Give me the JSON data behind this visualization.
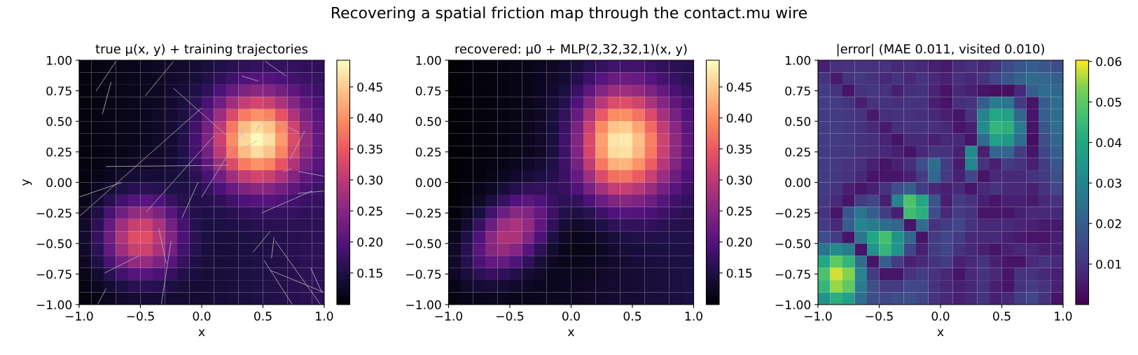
{
  "chart_data": [
    {
      "type": "other",
      "title": "Recovering a spatial friction map through the contact.mu wire"
    },
    {
      "type": "heatmap",
      "title": "true μ(x, y) + training trajectories",
      "xlabel": "x",
      "ylabel": "y",
      "xlim": [
        -1,
        1
      ],
      "ylim": [
        -1,
        1
      ],
      "xticks": [
        {
          "value": -1,
          "label": "−1.0"
        },
        {
          "value": -0.5,
          "label": "−0.5"
        },
        {
          "value": 0,
          "label": "0.0"
        },
        {
          "value": 0.5,
          "label": "0.5"
        },
        {
          "value": 1,
          "label": "1.0"
        }
      ],
      "yticks": [
        {
          "value": -1,
          "label": "−1.00"
        },
        {
          "value": -0.75,
          "label": "−0.75"
        },
        {
          "value": -0.5,
          "label": "−0.50"
        },
        {
          "value": -0.25,
          "label": "−0.25"
        },
        {
          "value": 0,
          "label": "0.00"
        },
        {
          "value": 0.25,
          "label": "0.25"
        },
        {
          "value": 0.5,
          "label": "0.50"
        },
        {
          "value": 0.75,
          "label": "0.75"
        },
        {
          "value": 1,
          "label": "1.00"
        }
      ],
      "clim": [
        0.099,
        0.493
      ],
      "cticks": [
        {
          "value": 0.15,
          "label": "0.15"
        },
        {
          "value": 0.2,
          "label": "0.20"
        },
        {
          "value": 0.25,
          "label": "0.25"
        },
        {
          "value": 0.3,
          "label": "0.30"
        },
        {
          "value": 0.35,
          "label": "0.35"
        },
        {
          "value": 0.4,
          "label": "0.40"
        },
        {
          "value": 0.45,
          "label": "0.45"
        }
      ],
      "colors": [
        "#000004",
        "#1c1044",
        "#51127c",
        "#832681",
        "#b73779",
        "#e85362",
        "#fc8961",
        "#fec287",
        "#fcfdbf"
      ],
      "cells": [
        [
          0.107,
          0.11,
          0.113,
          0.116,
          0.119,
          0.122,
          0.125,
          0.128,
          0.132,
          0.137,
          0.144,
          0.152,
          0.16,
          0.168,
          0.172,
          0.174,
          0.172,
          0.17,
          0.168,
          0.167
        ],
        [
          0.107,
          0.11,
          0.113,
          0.116,
          0.119,
          0.122,
          0.125,
          0.129,
          0.134,
          0.142,
          0.153,
          0.167,
          0.182,
          0.195,
          0.202,
          0.201,
          0.194,
          0.185,
          0.177,
          0.172
        ],
        [
          0.107,
          0.11,
          0.113,
          0.116,
          0.119,
          0.122,
          0.125,
          0.13,
          0.138,
          0.15,
          0.168,
          0.193,
          0.22,
          0.242,
          0.253,
          0.248,
          0.232,
          0.211,
          0.192,
          0.18
        ],
        [
          0.107,
          0.11,
          0.113,
          0.116,
          0.119,
          0.122,
          0.126,
          0.132,
          0.143,
          0.161,
          0.19,
          0.229,
          0.273,
          0.308,
          0.323,
          0.314,
          0.285,
          0.247,
          0.214,
          0.191
        ],
        [
          0.107,
          0.11,
          0.113,
          0.116,
          0.119,
          0.122,
          0.127,
          0.134,
          0.148,
          0.173,
          0.214,
          0.27,
          0.331,
          0.381,
          0.402,
          0.387,
          0.343,
          0.288,
          0.238,
          0.203
        ],
        [
          0.107,
          0.11,
          0.113,
          0.116,
          0.119,
          0.122,
          0.127,
          0.136,
          0.153,
          0.183,
          0.233,
          0.302,
          0.378,
          0.439,
          0.464,
          0.445,
          0.39,
          0.32,
          0.257,
          0.213
        ],
        [
          0.107,
          0.11,
          0.113,
          0.116,
          0.119,
          0.122,
          0.128,
          0.137,
          0.154,
          0.187,
          0.241,
          0.314,
          0.396,
          0.461,
          0.489,
          0.467,
          0.408,
          0.332,
          0.265,
          0.217
        ],
        [
          0.107,
          0.11,
          0.113,
          0.117,
          0.12,
          0.124,
          0.128,
          0.137,
          0.153,
          0.183,
          0.233,
          0.302,
          0.378,
          0.439,
          0.464,
          0.445,
          0.39,
          0.32,
          0.257,
          0.213
        ],
        [
          0.107,
          0.111,
          0.115,
          0.12,
          0.124,
          0.127,
          0.131,
          0.137,
          0.15,
          0.174,
          0.214,
          0.27,
          0.331,
          0.381,
          0.402,
          0.387,
          0.343,
          0.288,
          0.238,
          0.203
        ],
        [
          0.109,
          0.114,
          0.121,
          0.129,
          0.135,
          0.138,
          0.139,
          0.141,
          0.147,
          0.163,
          0.191,
          0.229,
          0.273,
          0.308,
          0.323,
          0.314,
          0.285,
          0.247,
          0.214,
          0.191
        ],
        [
          0.112,
          0.121,
          0.135,
          0.149,
          0.16,
          0.163,
          0.159,
          0.152,
          0.15,
          0.155,
          0.17,
          0.194,
          0.22,
          0.242,
          0.253,
          0.248,
          0.232,
          0.211,
          0.192,
          0.18
        ],
        [
          0.117,
          0.134,
          0.158,
          0.184,
          0.203,
          0.206,
          0.194,
          0.175,
          0.159,
          0.153,
          0.157,
          0.168,
          0.183,
          0.195,
          0.202,
          0.201,
          0.194,
          0.185,
          0.177,
          0.172
        ],
        [
          0.124,
          0.151,
          0.189,
          0.231,
          0.261,
          0.264,
          0.24,
          0.204,
          0.173,
          0.155,
          0.15,
          0.154,
          0.161,
          0.168,
          0.172,
          0.174,
          0.172,
          0.17,
          0.168,
          0.167
        ],
        [
          0.131,
          0.165,
          0.217,
          0.273,
          0.312,
          0.315,
          0.282,
          0.232,
          0.187,
          0.159,
          0.148,
          0.147,
          0.15,
          0.154,
          0.158,
          0.16,
          0.161,
          0.162,
          0.163,
          0.165
        ],
        [
          0.134,
          0.172,
          0.228,
          0.29,
          0.333,
          0.336,
          0.299,
          0.243,
          0.193,
          0.161,
          0.147,
          0.144,
          0.145,
          0.148,
          0.152,
          0.154,
          0.157,
          0.159,
          0.161,
          0.164
        ],
        [
          0.131,
          0.165,
          0.217,
          0.273,
          0.312,
          0.315,
          0.282,
          0.232,
          0.186,
          0.158,
          0.145,
          0.142,
          0.144,
          0.146,
          0.149,
          0.152,
          0.155,
          0.158,
          0.161,
          0.164
        ],
        [
          0.124,
          0.151,
          0.189,
          0.231,
          0.261,
          0.264,
          0.24,
          0.204,
          0.172,
          0.151,
          0.143,
          0.141,
          0.143,
          0.146,
          0.149,
          0.152,
          0.155,
          0.158,
          0.161,
          0.164
        ],
        [
          0.117,
          0.134,
          0.158,
          0.184,
          0.203,
          0.206,
          0.193,
          0.173,
          0.155,
          0.144,
          0.14,
          0.141,
          0.143,
          0.146,
          0.149,
          0.152,
          0.155,
          0.158,
          0.161,
          0.164
        ],
        [
          0.112,
          0.121,
          0.135,
          0.149,
          0.16,
          0.163,
          0.158,
          0.15,
          0.142,
          0.139,
          0.138,
          0.14,
          0.143,
          0.146,
          0.149,
          0.152,
          0.155,
          0.158,
          0.161,
          0.164
        ],
        [
          0.109,
          0.114,
          0.121,
          0.129,
          0.135,
          0.138,
          0.138,
          0.136,
          0.135,
          0.136,
          0.137,
          0.14,
          0.143,
          0.146,
          0.149,
          0.152,
          0.155,
          0.158,
          0.161,
          0.164
        ]
      ],
      "series": [
        {
          "type": "line",
          "color": "#b4b4b4",
          "x": [
            -0.86,
            -0.7
          ],
          "values": [
            0.75,
            0.99
          ]
        },
        {
          "type": "line",
          "color": "#b4b4b4",
          "x": [
            -0.81,
            -0.74
          ],
          "values": [
            0.56,
            0.82
          ]
        },
        {
          "type": "line",
          "color": "#b4b4b4",
          "x": [
            -0.46,
            -0.23
          ],
          "values": [
            0.71,
            0.99
          ]
        },
        {
          "type": "line",
          "color": "#b4b4b4",
          "x": [
            -0.23,
            0.22
          ],
          "values": [
            0.77,
            0.37
          ]
        },
        {
          "type": "line",
          "color": "#b4b4b4",
          "x": [
            -1.0,
            0.0
          ],
          "values": [
            -0.28,
            0.61
          ]
        },
        {
          "type": "line",
          "color": "#b4b4b4",
          "x": [
            -1.0,
            -0.65
          ],
          "values": [
            -0.12,
            0.0
          ]
        },
        {
          "type": "line",
          "color": "#b4b4b4",
          "x": [
            -0.78,
            0.22
          ],
          "values": [
            0.13,
            0.14
          ]
        },
        {
          "type": "line",
          "color": "#b4b4b4",
          "x": [
            -0.45,
            0.1
          ],
          "values": [
            -0.24,
            0.38
          ]
        },
        {
          "type": "line",
          "color": "#b4b4b4",
          "x": [
            -0.16,
            -0.03
          ],
          "values": [
            -0.29,
            0.0
          ]
        },
        {
          "type": "line",
          "color": "#b4b4b4",
          "x": [
            0.0,
            0.35
          ],
          "values": [
            -0.12,
            0.45
          ]
        },
        {
          "type": "line",
          "color": "#b4b4b4",
          "x": [
            0.33,
            0.45
          ],
          "values": [
            0.27,
            0.34
          ]
        },
        {
          "type": "line",
          "color": "#b4b4b4",
          "x": [
            0.44,
            0.52
          ],
          "values": [
            0.42,
            0.52
          ]
        },
        {
          "type": "line",
          "color": "#b4b4b4",
          "x": [
            0.32,
            0.34
          ],
          "values": [
            0.45,
            0.37
          ]
        },
        {
          "type": "line",
          "color": "#b4b4b4",
          "x": [
            0.54,
            0.79
          ],
          "values": [
            0.53,
            0.41
          ]
        },
        {
          "type": "line",
          "color": "#b4b4b4",
          "x": [
            0.67,
            0.68
          ],
          "values": [
            0.44,
            0.37
          ]
        },
        {
          "type": "line",
          "color": "#b4b4b4",
          "x": [
            0.72,
            0.84
          ],
          "values": [
            0.19,
            0.42
          ]
        },
        {
          "type": "line",
          "color": "#b4b4b4",
          "x": [
            0.67,
            0.73
          ],
          "values": [
            0.09,
            0.11
          ]
        },
        {
          "type": "line",
          "color": "#b4b4b4",
          "x": [
            0.79,
            1.0
          ],
          "values": [
            0.09,
            0.05
          ]
        },
        {
          "type": "line",
          "color": "#b4b4b4",
          "x": [
            0.79,
            1.0
          ],
          "values": [
            -0.09,
            -0.07
          ]
        },
        {
          "type": "line",
          "color": "#b4b4b4",
          "x": [
            0.49,
            0.9
          ],
          "values": [
            -0.25,
            -0.07
          ]
        },
        {
          "type": "line",
          "color": "#b4b4b4",
          "x": [
            0.33,
            0.46
          ],
          "values": [
            0.87,
            0.83
          ]
        },
        {
          "type": "line",
          "color": "#b4b4b4",
          "x": [
            0.52,
            0.69
          ],
          "values": [
            0.99,
            0.87
          ]
        },
        {
          "type": "line",
          "color": "#b4b4b4",
          "x": [
            -0.79,
            -0.51
          ],
          "values": [
            -0.74,
            -0.6
          ]
        },
        {
          "type": "line",
          "color": "#b4b4b4",
          "x": [
            -0.85,
            -0.78
          ],
          "values": [
            -1.0,
            -0.87
          ]
        },
        {
          "type": "line",
          "color": "#b4b4b4",
          "x": [
            -0.35,
            -0.29
          ],
          "values": [
            -0.38,
            -0.66
          ]
        },
        {
          "type": "line",
          "color": "#b4b4b4",
          "x": [
            -0.33,
            -0.25
          ],
          "values": [
            -1.0,
            -0.48
          ]
        },
        {
          "type": "line",
          "color": "#b4b4b4",
          "x": [
            0.42,
            0.56
          ],
          "values": [
            -0.57,
            -0.4
          ]
        },
        {
          "type": "line",
          "color": "#b4b4b4",
          "x": [
            0.57,
            0.59
          ],
          "values": [
            -0.62,
            -0.45
          ]
        },
        {
          "type": "line",
          "color": "#b4b4b4",
          "x": [
            0.51,
            0.74
          ],
          "values": [
            -0.64,
            -1.0
          ]
        },
        {
          "type": "line",
          "color": "#b4b4b4",
          "x": [
            0.6,
            0.97
          ],
          "values": [
            -0.48,
            -1.0
          ]
        },
        {
          "type": "line",
          "color": "#b4b4b4",
          "x": [
            0.56,
            1.0
          ],
          "values": [
            -0.72,
            -0.9
          ]
        },
        {
          "type": "line",
          "color": "#b4b4b4",
          "x": [
            0.89,
            0.98
          ],
          "values": [
            -0.7,
            -0.9
          ]
        }
      ]
    },
    {
      "type": "heatmap",
      "title": "recovered: μ0 + MLP(2,32,32,1)(x, y)",
      "xlabel": "x",
      "xlim": [
        -1,
        1
      ],
      "ylim": [
        -1,
        1
      ],
      "xticks": [
        {
          "value": -1,
          "label": "−1.0"
        },
        {
          "value": -0.5,
          "label": "−0.5"
        },
        {
          "value": 0,
          "label": "0.0"
        },
        {
          "value": 0.5,
          "label": "0.5"
        },
        {
          "value": 1,
          "label": "1.0"
        }
      ],
      "yticks": [
        {
          "value": -1,
          "label": "−1.00"
        },
        {
          "value": -0.75,
          "label": "−0.75"
        },
        {
          "value": -0.5,
          "label": "−0.50"
        },
        {
          "value": -0.25,
          "label": "−0.25"
        },
        {
          "value": 0,
          "label": "0.00"
        },
        {
          "value": 0.25,
          "label": "0.25"
        },
        {
          "value": 0.5,
          "label": "0.50"
        },
        {
          "value": 0.75,
          "label": "0.75"
        },
        {
          "value": 1,
          "label": "1.00"
        }
      ],
      "clim": [
        0.099,
        0.493
      ],
      "cticks": [
        {
          "value": 0.15,
          "label": "0.15"
        },
        {
          "value": 0.2,
          "label": "0.20"
        },
        {
          "value": 0.25,
          "label": "0.25"
        },
        {
          "value": 0.3,
          "label": "0.30"
        },
        {
          "value": 0.35,
          "label": "0.35"
        },
        {
          "value": 0.4,
          "label": "0.40"
        },
        {
          "value": 0.45,
          "label": "0.45"
        }
      ],
      "colors": [
        "#000004",
        "#1c1044",
        "#51127c",
        "#832681",
        "#b73779",
        "#e85362",
        "#fc8961",
        "#fec287",
        "#fcfdbf"
      ],
      "cells": [
        [
          0.101,
          0.104,
          0.106,
          0.109,
          0.111,
          0.114,
          0.117,
          0.12,
          0.125,
          0.132,
          0.143,
          0.158,
          0.172,
          0.183,
          0.185,
          0.183,
          0.176,
          0.169,
          0.163,
          0.158
        ],
        [
          0.101,
          0.104,
          0.106,
          0.109,
          0.111,
          0.114,
          0.117,
          0.121,
          0.128,
          0.139,
          0.157,
          0.18,
          0.203,
          0.22,
          0.223,
          0.216,
          0.203,
          0.188,
          0.175,
          0.165
        ],
        [
          0.101,
          0.104,
          0.106,
          0.109,
          0.111,
          0.114,
          0.117,
          0.122,
          0.131,
          0.148,
          0.175,
          0.21,
          0.246,
          0.271,
          0.274,
          0.262,
          0.24,
          0.215,
          0.192,
          0.175
        ],
        [
          0.101,
          0.104,
          0.106,
          0.109,
          0.111,
          0.114,
          0.118,
          0.124,
          0.136,
          0.159,
          0.196,
          0.247,
          0.298,
          0.332,
          0.336,
          0.318,
          0.285,
          0.247,
          0.212,
          0.187
        ],
        [
          0.101,
          0.104,
          0.106,
          0.109,
          0.111,
          0.114,
          0.118,
          0.126,
          0.141,
          0.17,
          0.218,
          0.284,
          0.35,
          0.395,
          0.399,
          0.374,
          0.33,
          0.279,
          0.233,
          0.198
        ],
        [
          0.101,
          0.104,
          0.106,
          0.109,
          0.111,
          0.114,
          0.119,
          0.127,
          0.144,
          0.178,
          0.236,
          0.313,
          0.393,
          0.445,
          0.45,
          0.419,
          0.366,
          0.305,
          0.25,
          0.208
        ],
        [
          0.101,
          0.104,
          0.106,
          0.109,
          0.111,
          0.115,
          0.119,
          0.128,
          0.146,
          0.183,
          0.245,
          0.328,
          0.414,
          0.47,
          0.475,
          0.442,
          0.384,
          0.318,
          0.258,
          0.213
        ],
        [
          0.101,
          0.104,
          0.106,
          0.109,
          0.111,
          0.114,
          0.119,
          0.127,
          0.146,
          0.182,
          0.243,
          0.324,
          0.408,
          0.463,
          0.468,
          0.436,
          0.379,
          0.314,
          0.256,
          0.211
        ],
        [
          0.101,
          0.104,
          0.107,
          0.11,
          0.114,
          0.12,
          0.126,
          0.135,
          0.151,
          0.181,
          0.233,
          0.305,
          0.378,
          0.427,
          0.432,
          0.403,
          0.353,
          0.295,
          0.244,
          0.205
        ],
        [
          0.101,
          0.104,
          0.108,
          0.114,
          0.121,
          0.131,
          0.14,
          0.148,
          0.157,
          0.177,
          0.216,
          0.272,
          0.33,
          0.37,
          0.374,
          0.352,
          0.312,
          0.266,
          0.225,
          0.194
        ],
        [
          0.102,
          0.106,
          0.113,
          0.124,
          0.14,
          0.156,
          0.168,
          0.17,
          0.168,
          0.174,
          0.197,
          0.235,
          0.277,
          0.307,
          0.311,
          0.295,
          0.266,
          0.233,
          0.204,
          0.182
        ],
        [
          0.103,
          0.11,
          0.124,
          0.146,
          0.175,
          0.199,
          0.207,
          0.196,
          0.177,
          0.165,
          0.171,
          0.194,
          0.223,
          0.245,
          0.25,
          0.242,
          0.224,
          0.203,
          0.185,
          0.171
        ],
        [
          0.106,
          0.12,
          0.145,
          0.183,
          0.224,
          0.25,
          0.245,
          0.215,
          0.178,
          0.154,
          0.149,
          0.161,
          0.18,
          0.198,
          0.203,
          0.2,
          0.191,
          0.18,
          0.169,
          0.162
        ],
        [
          0.112,
          0.134,
          0.173,
          0.225,
          0.27,
          0.285,
          0.261,
          0.214,
          0.168,
          0.139,
          0.129,
          0.135,
          0.15,
          0.164,
          0.17,
          0.171,
          0.169,
          0.163,
          0.159,
          0.156
        ],
        [
          0.12,
          0.151,
          0.199,
          0.252,
          0.287,
          0.284,
          0.244,
          0.193,
          0.151,
          0.126,
          0.118,
          0.122,
          0.132,
          0.143,
          0.15,
          0.154,
          0.155,
          0.154,
          0.153,
          0.152
        ],
        [
          0.127,
          0.161,
          0.207,
          0.249,
          0.265,
          0.247,
          0.206,
          0.164,
          0.134,
          0.119,
          0.114,
          0.117,
          0.125,
          0.134,
          0.141,
          0.145,
          0.148,
          0.148,
          0.149,
          0.15
        ],
        [
          0.129,
          0.158,
          0.192,
          0.216,
          0.217,
          0.196,
          0.166,
          0.141,
          0.125,
          0.117,
          0.116,
          0.12,
          0.125,
          0.132,
          0.137,
          0.141,
          0.144,
          0.146,
          0.147,
          0.149
        ],
        [
          0.124,
          0.145,
          0.165,
          0.174,
          0.169,
          0.154,
          0.138,
          0.127,
          0.122,
          0.12,
          0.12,
          0.123,
          0.127,
          0.132,
          0.136,
          0.139,
          0.142,
          0.144,
          0.146,
          0.149
        ],
        [
          0.116,
          0.128,
          0.137,
          0.14,
          0.136,
          0.129,
          0.124,
          0.122,
          0.121,
          0.122,
          0.124,
          0.126,
          0.129,
          0.133,
          0.136,
          0.139,
          0.141,
          0.144,
          0.146,
          0.149
        ],
        [
          0.109,
          0.115,
          0.119,
          0.121,
          0.12,
          0.118,
          0.118,
          0.12,
          0.121,
          0.123,
          0.125,
          0.128,
          0.131,
          0.133,
          0.136,
          0.139,
          0.141,
          0.144,
          0.146,
          0.149
        ]
      ]
    },
    {
      "type": "heatmap",
      "title": "|error| (MAE 0.011, visited 0.010)",
      "xlabel": "x",
      "xlim": [
        -1,
        1
      ],
      "ylim": [
        -1,
        1
      ],
      "xticks": [
        {
          "value": -1,
          "label": "−1.0"
        },
        {
          "value": -0.5,
          "label": "−0.5"
        },
        {
          "value": 0,
          "label": "0.0"
        },
        {
          "value": 0.5,
          "label": "0.5"
        },
        {
          "value": 1,
          "label": "1.0"
        }
      ],
      "yticks": [
        {
          "value": -1,
          "label": "−1.00"
        },
        {
          "value": -0.75,
          "label": "−0.75"
        },
        {
          "value": -0.5,
          "label": "−0.50"
        },
        {
          "value": -0.25,
          "label": "−0.25"
        },
        {
          "value": 0,
          "label": "0.00"
        },
        {
          "value": 0.25,
          "label": "0.25"
        },
        {
          "value": 0.5,
          "label": "0.50"
        },
        {
          "value": 0.75,
          "label": "0.75"
        },
        {
          "value": 1,
          "label": "1.00"
        }
      ],
      "clim": [
        0,
        0.0603
      ],
      "cticks": [
        {
          "value": 0.01,
          "label": "0.01"
        },
        {
          "value": 0.02,
          "label": "0.02"
        },
        {
          "value": 0.03,
          "label": "0.03"
        },
        {
          "value": 0.04,
          "label": "0.04"
        },
        {
          "value": 0.05,
          "label": "0.05"
        },
        {
          "value": 0.06,
          "label": "0.06"
        }
      ],
      "colors": [
        "#440154",
        "#482475",
        "#414487",
        "#355f8d",
        "#2a788e",
        "#21918c",
        "#22a884",
        "#44bf70",
        "#7ad151",
        "#fde725"
      ],
      "cells": [
        [
          0.006,
          0.009,
          0.01,
          0.01,
          0.01,
          0.01,
          0.008,
          0.009,
          0.008,
          0.006,
          0.005,
          0.008,
          0.009,
          0.008,
          0.01,
          0.015,
          0.018,
          0.02,
          0.018,
          0.016
        ],
        [
          0.01,
          0.005,
          0.01,
          0.011,
          0.01,
          0.008,
          0.01,
          0.008,
          0.01,
          0.008,
          0.006,
          0.009,
          0.008,
          0.01,
          0.014,
          0.018,
          0.021,
          0.023,
          0.022,
          0.02
        ],
        [
          0.012,
          0.01,
          0.004,
          0.01,
          0.011,
          0.01,
          0.006,
          0.009,
          0.01,
          0.007,
          0.004,
          0.008,
          0.006,
          0.004,
          0.003,
          0.003,
          0.008,
          0.02,
          0.024,
          0.022
        ],
        [
          0.012,
          0.012,
          0.01,
          0.006,
          0.01,
          0.01,
          0.009,
          0.01,
          0.01,
          0.006,
          0.004,
          0.009,
          0.01,
          0.02,
          0.028,
          0.026,
          0.012,
          0.004,
          0.02,
          0.024
        ],
        [
          0.012,
          0.012,
          0.011,
          0.01,
          0.005,
          0.009,
          0.01,
          0.01,
          0.009,
          0.008,
          0.006,
          0.004,
          0.01,
          0.03,
          0.04,
          0.038,
          0.022,
          0.004,
          0.02,
          0.024
        ],
        [
          0.012,
          0.012,
          0.011,
          0.01,
          0.008,
          0.005,
          0.009,
          0.01,
          0.01,
          0.009,
          0.008,
          0.004,
          0.006,
          0.032,
          0.044,
          0.042,
          0.028,
          0.004,
          0.018,
          0.024
        ],
        [
          0.012,
          0.012,
          0.011,
          0.01,
          0.009,
          0.007,
          0.004,
          0.008,
          0.008,
          0.006,
          0.008,
          0.008,
          0.004,
          0.024,
          0.038,
          0.036,
          0.024,
          0.003,
          0.016,
          0.022
        ],
        [
          0.012,
          0.011,
          0.011,
          0.01,
          0.009,
          0.008,
          0.006,
          0.004,
          0.008,
          0.01,
          0.01,
          0.006,
          0.032,
          0.006,
          0.022,
          0.022,
          0.012,
          0.004,
          0.014,
          0.02
        ],
        [
          0.012,
          0.011,
          0.01,
          0.009,
          0.006,
          0.004,
          0.006,
          0.009,
          0.016,
          0.024,
          0.012,
          0.005,
          0.03,
          0.01,
          0.006,
          0.012,
          0.01,
          0.006,
          0.012,
          0.018
        ],
        [
          0.012,
          0.011,
          0.01,
          0.008,
          0.004,
          0.004,
          0.004,
          0.006,
          0.012,
          0.022,
          0.012,
          0.006,
          0.014,
          0.004,
          0.008,
          0.008,
          0.008,
          0.01,
          0.012,
          0.016
        ],
        [
          0.012,
          0.01,
          0.006,
          0.004,
          0.006,
          0.01,
          0.016,
          0.02,
          0.012,
          0.008,
          0.006,
          0.008,
          0.004,
          0.008,
          0.01,
          0.008,
          0.008,
          0.006,
          0.01,
          0.014
        ],
        [
          0.011,
          0.008,
          0.004,
          0.012,
          0.014,
          0.006,
          0.03,
          0.048,
          0.04,
          0.018,
          0.006,
          0.012,
          0.01,
          0.006,
          0.004,
          0.006,
          0.006,
          0.005,
          0.008,
          0.01
        ],
        [
          0.01,
          0.004,
          0.018,
          0.026,
          0.02,
          0.012,
          0.006,
          0.046,
          0.042,
          0.016,
          0.008,
          0.012,
          0.01,
          0.004,
          0.004,
          0.004,
          0.006,
          0.008,
          0.008,
          0.008
        ],
        [
          0.012,
          0.008,
          0.02,
          0.03,
          0.028,
          0.024,
          0.022,
          0.004,
          0.024,
          0.01,
          0.012,
          0.014,
          0.01,
          0.008,
          0.008,
          0.008,
          0.007,
          0.006,
          0.005,
          0.005
        ],
        [
          0.016,
          0.012,
          0.004,
          0.026,
          0.04,
          0.047,
          0.034,
          0.022,
          0.004,
          0.012,
          0.014,
          0.012,
          0.008,
          0.008,
          0.008,
          0.006,
          0.005,
          0.004,
          0.004,
          0.006
        ],
        [
          0.026,
          0.032,
          0.028,
          0.004,
          0.034,
          0.044,
          0.034,
          0.014,
          0.006,
          0.012,
          0.014,
          0.01,
          0.008,
          0.006,
          0.004,
          0.006,
          0.008,
          0.008,
          0.006,
          0.006
        ],
        [
          0.04,
          0.05,
          0.044,
          0.024,
          0.004,
          0.02,
          0.012,
          0.006,
          0.008,
          0.01,
          0.012,
          0.006,
          0.008,
          0.01,
          0.006,
          0.004,
          0.004,
          0.008,
          0.01,
          0.008
        ],
        [
          0.048,
          0.058,
          0.054,
          0.03,
          0.012,
          0.004,
          0.004,
          0.01,
          0.012,
          0.01,
          0.008,
          0.004,
          0.008,
          0.01,
          0.008,
          0.004,
          0.01,
          0.01,
          0.008,
          0.006
        ],
        [
          0.044,
          0.055,
          0.05,
          0.028,
          0.016,
          0.012,
          0.012,
          0.014,
          0.014,
          0.01,
          0.008,
          0.006,
          0.008,
          0.01,
          0.006,
          0.004,
          0.01,
          0.012,
          0.01,
          0.006
        ],
        [
          0.034,
          0.042,
          0.038,
          0.024,
          0.016,
          0.014,
          0.016,
          0.016,
          0.014,
          0.01,
          0.008,
          0.006,
          0.008,
          0.01,
          0.006,
          0.008,
          0.012,
          0.014,
          0.01,
          0.004
        ]
      ]
    }
  ]
}
